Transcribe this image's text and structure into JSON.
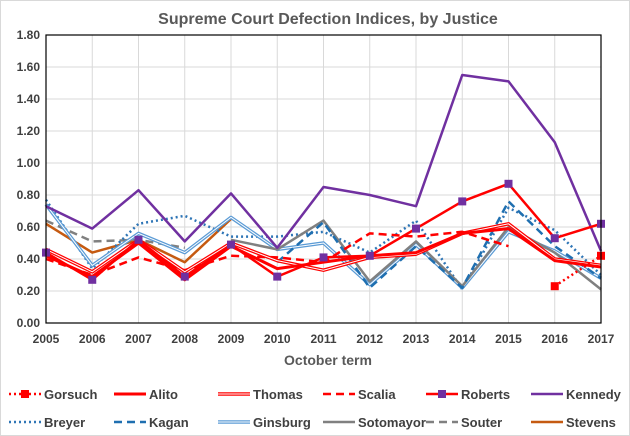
{
  "chart_data": {
    "type": "line",
    "title": "Supreme Court Defection Indices, by Justice",
    "xlabel": "October term",
    "ylabel": "",
    "x": [
      "2005",
      "2006",
      "2007",
      "2008",
      "2009",
      "2010",
      "2011",
      "2012",
      "2013",
      "2014",
      "2015",
      "2016",
      "2017"
    ],
    "ylim": [
      0,
      1.8
    ],
    "yticks": [
      "0.00",
      "0.20",
      "0.40",
      "0.60",
      "0.80",
      "1.00",
      "1.20",
      "1.40",
      "1.60",
      "1.80"
    ],
    "grid": true,
    "legend_position": "bottom",
    "series": [
      {
        "name": "Gorsuch",
        "color": "#ff0000",
        "style": "dotted-square",
        "values": [
          null,
          null,
          null,
          null,
          null,
          null,
          null,
          null,
          null,
          null,
          null,
          0.23,
          0.42
        ]
      },
      {
        "name": "Alito",
        "color": "#ff0000",
        "style": "solid-thick",
        "values": [
          0.42,
          0.29,
          0.5,
          0.27,
          0.48,
          0.34,
          0.38,
          0.42,
          0.44,
          0.56,
          0.59,
          0.39,
          0.35
        ]
      },
      {
        "name": "Thomas",
        "color": "#ff0000",
        "style": "double",
        "values": [
          0.46,
          0.32,
          0.52,
          0.32,
          0.5,
          0.39,
          0.33,
          0.41,
          0.43,
          0.56,
          0.62,
          0.4,
          0.36
        ]
      },
      {
        "name": "Scalia",
        "color": "#ff0000",
        "style": "dashed",
        "values": [
          0.4,
          0.3,
          0.41,
          0.33,
          0.42,
          0.41,
          0.38,
          0.56,
          0.54,
          0.57,
          0.48,
          null,
          null
        ]
      },
      {
        "name": "Roberts",
        "color": "#ff0000",
        "marker_color": "#7030a0",
        "style": "solid-square",
        "values": [
          0.44,
          0.27,
          0.52,
          0.29,
          0.49,
          0.29,
          0.41,
          0.42,
          0.59,
          0.76,
          0.87,
          0.53,
          0.62
        ]
      },
      {
        "name": "Kennedy",
        "color": "#7030a0",
        "style": "solid",
        "values": [
          0.73,
          0.59,
          0.83,
          0.51,
          0.81,
          0.47,
          0.85,
          0.8,
          0.73,
          1.55,
          1.51,
          1.13,
          0.45
        ]
      },
      {
        "name": "Breyer",
        "color": "#2e75b6",
        "style": "dotted",
        "values": [
          0.77,
          0.34,
          0.62,
          0.67,
          0.54,
          0.54,
          0.57,
          0.44,
          0.64,
          0.21,
          0.72,
          0.58,
          0.3
        ]
      },
      {
        "name": "Kagan",
        "color": "#1f6fb0",
        "style": "dashed",
        "values": [
          null,
          null,
          null,
          null,
          null,
          0.38,
          0.63,
          0.22,
          0.48,
          0.22,
          0.76,
          0.48,
          0.28
        ]
      },
      {
        "name": "Ginsburg",
        "color": "#5b9bd5",
        "style": "double",
        "values": [
          0.74,
          0.36,
          0.56,
          0.44,
          0.66,
          0.46,
          0.5,
          0.24,
          0.49,
          0.22,
          0.57,
          0.45,
          0.28
        ]
      },
      {
        "name": "Sotomayor",
        "color": "#808080",
        "style": "solid",
        "values": [
          null,
          null,
          null,
          null,
          0.52,
          0.46,
          0.64,
          0.26,
          0.51,
          0.23,
          0.6,
          0.44,
          0.21
        ]
      },
      {
        "name": "Souter",
        "color": "#808080",
        "style": "dashed",
        "values": [
          0.64,
          0.51,
          0.52,
          0.47,
          null,
          null,
          null,
          null,
          null,
          null,
          null,
          null,
          null
        ]
      },
      {
        "name": "Stevens",
        "color": "#c55a11",
        "style": "solid",
        "values": [
          0.62,
          0.44,
          0.52,
          0.38,
          0.65,
          null,
          null,
          null,
          null,
          null,
          null,
          null,
          null
        ]
      }
    ]
  }
}
